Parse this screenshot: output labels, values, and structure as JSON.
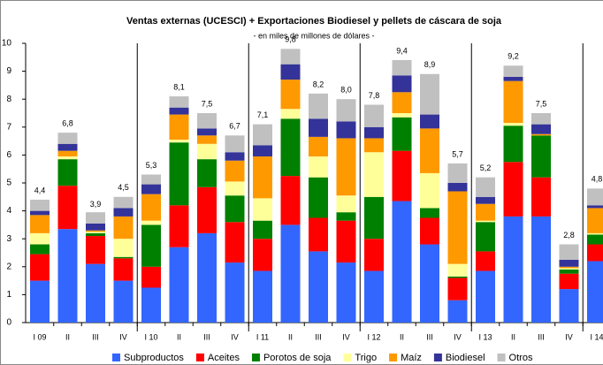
{
  "chart_data": {
    "type": "stacked_bar",
    "title": "Ventas externas (UCESCI) + Exportaciones Biodiesel y pellets de cáscara de soja",
    "subtitle": "- en miles de millones de dólares -",
    "categories": [
      "I 09",
      "II",
      "III",
      "IV",
      "I 10",
      "II",
      "III",
      "IV",
      "I 11",
      "II",
      "III",
      "IV",
      "I 12",
      "II",
      "III",
      "IV",
      "I 13",
      "II",
      "III",
      "IV",
      "I 14"
    ],
    "ylim": [
      0,
      10
    ],
    "yticks": [
      0,
      1,
      2,
      3,
      4,
      5,
      6,
      7,
      8,
      9,
      10
    ],
    "grid": false,
    "legend": "bottom",
    "series": [
      {
        "name": "Subproductos",
        "color": "#3366ff",
        "values": [
          1.5,
          3.35,
          2.1,
          1.5,
          1.25,
          2.7,
          3.2,
          2.15,
          1.85,
          3.5,
          2.55,
          2.15,
          1.85,
          4.35,
          2.8,
          0.8,
          1.85,
          3.8,
          3.8,
          1.2,
          2.2
        ]
      },
      {
        "name": "Aceites",
        "color": "#ff0000",
        "values": [
          0.95,
          1.55,
          1.0,
          0.8,
          0.75,
          1.5,
          1.65,
          1.45,
          1.15,
          1.75,
          1.2,
          1.5,
          1.15,
          1.8,
          0.95,
          0.8,
          0.7,
          1.95,
          1.4,
          0.55,
          0.6
        ]
      },
      {
        "name": "Porotos de soja",
        "color": "#008000",
        "values": [
          0.35,
          0.95,
          0.1,
          0.05,
          1.5,
          2.25,
          1.0,
          0.95,
          0.65,
          2.05,
          1.45,
          0.3,
          1.5,
          1.2,
          0.35,
          0.05,
          1.05,
          1.3,
          1.5,
          0.15,
          0.35
        ]
      },
      {
        "name": "Trigo",
        "color": "#ffff99",
        "values": [
          0.4,
          0.1,
          0.05,
          0.65,
          0.15,
          0.1,
          0.55,
          0.5,
          0.8,
          0.35,
          0.75,
          0.6,
          1.6,
          0.15,
          1.25,
          0.45,
          0.05,
          0.1,
          0.0,
          0.05,
          0.05
        ]
      },
      {
        "name": "Maíz",
        "color": "#ff9900",
        "values": [
          0.65,
          0.2,
          0.05,
          0.8,
          0.95,
          0.9,
          0.3,
          0.75,
          1.5,
          1.05,
          0.7,
          2.05,
          0.5,
          0.75,
          1.6,
          2.6,
          0.6,
          1.5,
          0.05,
          0.05,
          0.9
        ]
      },
      {
        "name": "Biodiesel",
        "color": "#333399",
        "values": [
          0.15,
          0.25,
          0.25,
          0.3,
          0.35,
          0.25,
          0.25,
          0.3,
          0.4,
          0.55,
          0.65,
          0.6,
          0.4,
          0.6,
          0.5,
          0.3,
          0.25,
          0.15,
          0.35,
          0.25,
          0.1
        ]
      },
      {
        "name": "Otros",
        "color": "#c0c0c0",
        "values": [
          0.4,
          0.4,
          0.4,
          0.4,
          0.35,
          0.4,
          0.55,
          0.6,
          0.75,
          0.55,
          0.9,
          0.8,
          0.8,
          0.55,
          1.45,
          0.7,
          0.7,
          0.4,
          0.4,
          0.55,
          0.6
        ]
      }
    ],
    "totals": {
      "values": [
        4.4,
        6.8,
        3.9,
        4.5,
        5.3,
        8.1,
        7.5,
        6.7,
        7.1,
        9.8,
        8.2,
        8.0,
        7.8,
        9.4,
        8.9,
        5.7,
        5.2,
        9.2,
        7.5,
        2.8,
        4.8
      ],
      "value_labels": [
        "4,4",
        "6,8",
        "3,9",
        "4,5",
        "5,3",
        "8,1",
        "7,5",
        "6,7",
        "7,1",
        "9,8",
        "8,2",
        "8,0",
        "7,8",
        "9,4",
        "8,9",
        "5,7",
        "5,2",
        "9,2",
        "7,5",
        "2,8",
        "4,8"
      ]
    }
  }
}
